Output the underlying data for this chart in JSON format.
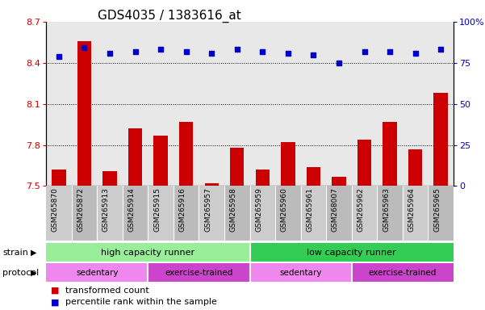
{
  "title": "GDS4035 / 1383616_at",
  "samples": [
    "GSM265870",
    "GSM265872",
    "GSM265913",
    "GSM265914",
    "GSM265915",
    "GSM265916",
    "GSM265957",
    "GSM265958",
    "GSM265959",
    "GSM265960",
    "GSM265961",
    "GSM268007",
    "GSM265962",
    "GSM265963",
    "GSM265964",
    "GSM265965"
  ],
  "bar_values": [
    7.62,
    8.56,
    7.61,
    7.92,
    7.87,
    7.97,
    7.52,
    7.78,
    7.62,
    7.82,
    7.64,
    7.57,
    7.84,
    7.97,
    7.77,
    8.18
  ],
  "percentile_values": [
    79,
    84,
    81,
    82,
    83,
    82,
    81,
    83,
    82,
    81,
    80,
    75,
    82,
    82,
    81,
    83
  ],
  "bar_color": "#CC0000",
  "percentile_color": "#0000CC",
  "ylim_left": [
    7.5,
    8.7
  ],
  "ylim_right": [
    0,
    100
  ],
  "yticks_left": [
    7.5,
    7.8,
    8.1,
    8.4,
    8.7
  ],
  "ytick_labels_left": [
    "7.5",
    "7.8",
    "8.1",
    "8.4",
    "8.7"
  ],
  "yticks_right": [
    0,
    25,
    50,
    75,
    100
  ],
  "ytick_labels_right": [
    "0",
    "25",
    "50",
    "75",
    "100%"
  ],
  "gridlines": [
    7.8,
    8.1,
    8.4
  ],
  "strain_groups": [
    {
      "label": "high capacity runner",
      "start": 0,
      "end": 8,
      "color": "#99EE99"
    },
    {
      "label": "low capacity runner",
      "start": 8,
      "end": 16,
      "color": "#33CC55"
    }
  ],
  "protocol_groups": [
    {
      "label": "sedentary",
      "start": 0,
      "end": 4,
      "color": "#EE88EE"
    },
    {
      "label": "exercise-trained",
      "start": 4,
      "end": 8,
      "color": "#CC44CC"
    },
    {
      "label": "sedentary",
      "start": 8,
      "end": 12,
      "color": "#EE88EE"
    },
    {
      "label": "exercise-trained",
      "start": 12,
      "end": 16,
      "color": "#CC44CC"
    }
  ],
  "strain_label": "strain",
  "protocol_label": "protocol",
  "legend_bar_label": "transformed count",
  "legend_pct_label": "percentile rank within the sample",
  "bar_width": 0.55,
  "background_color": "#FFFFFF",
  "plot_bg_color": "#E8E8E8",
  "sample_col_colors": [
    "#CCCCCC",
    "#BBBBBB"
  ],
  "title_fontsize": 11,
  "tick_fontsize": 8,
  "sample_fontsize": 6.5
}
